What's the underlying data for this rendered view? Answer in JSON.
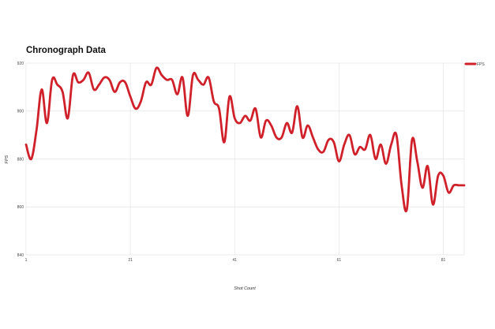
{
  "chart_data": {
    "type": "line",
    "title": "Chronograph Data",
    "xlabel": "Shot Count",
    "ylabel": "FPS",
    "xlim": [
      1,
      85
    ],
    "ylim": [
      840,
      920
    ],
    "x_ticks": [
      "1",
      "21",
      "41",
      "61",
      "81"
    ],
    "y_ticks": [
      "840",
      "860",
      "880",
      "900",
      "920"
    ],
    "grid": true,
    "legend_position": "top-right",
    "series": [
      {
        "name": "FPS",
        "color": "#d0202a",
        "x": [
          1,
          2,
          3,
          4,
          5,
          6,
          7,
          8,
          9,
          10,
          11,
          12,
          13,
          14,
          15,
          16,
          17,
          18,
          19,
          20,
          21,
          22,
          23,
          24,
          25,
          26,
          27,
          28,
          29,
          30,
          31,
          32,
          33,
          34,
          35,
          36,
          37,
          38,
          39,
          40,
          41,
          42,
          43,
          44,
          45,
          46,
          47,
          48,
          49,
          50,
          51,
          52,
          53,
          54,
          55,
          56,
          57,
          58,
          59,
          60,
          61,
          62,
          63,
          64,
          65,
          66,
          67,
          68,
          69,
          70,
          71,
          72,
          73,
          74,
          75,
          76,
          77,
          78,
          79,
          80,
          81,
          82,
          83,
          84,
          85
        ],
        "values": [
          886,
          880,
          892,
          909,
          895,
          913,
          911,
          908,
          897,
          915,
          912,
          913,
          916,
          909,
          911,
          914,
          913,
          908,
          912,
          912,
          906,
          901,
          904,
          912,
          911,
          918,
          915,
          913,
          913,
          907,
          914,
          898,
          915,
          913,
          911,
          914,
          904,
          901,
          887,
          906,
          897,
          895,
          898,
          896,
          901,
          889,
          896,
          894,
          889,
          889,
          895,
          891,
          902,
          889,
          894,
          889,
          884,
          883,
          888,
          887,
          879,
          886,
          890,
          882,
          885,
          884,
          890,
          880,
          886,
          878,
          886,
          890,
          869,
          859,
          888,
          879,
          868,
          877,
          861,
          873,
          873,
          866,
          869,
          869,
          869
        ]
      }
    ]
  }
}
